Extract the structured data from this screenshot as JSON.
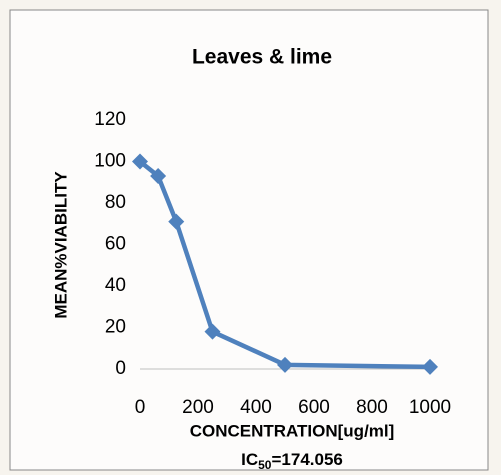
{
  "chart_data": {
    "type": "line",
    "title": "Leaves & lime",
    "x_label": "CONCENTRATION[ug/ml]",
    "y_label": "MEAN%VIABILITY",
    "annotation": {
      "main": "IC",
      "sub": "50",
      "rest": "=174.056"
    },
    "x": [
      0,
      62.5,
      125,
      250,
      500,
      1000
    ],
    "series": [
      {
        "name": "Leaves & lime",
        "color": "#4f81bd",
        "values": [
          100,
          93,
          71,
          18,
          2,
          1
        ]
      }
    ],
    "xlim": [
      0,
      1000
    ],
    "xticks": [
      0,
      200,
      400,
      600,
      800,
      1000
    ],
    "ylim": [
      0,
      120
    ],
    "yticks": [
      0,
      20,
      40,
      60,
      80,
      100,
      120
    ],
    "grid": false,
    "marker": "diamond"
  }
}
